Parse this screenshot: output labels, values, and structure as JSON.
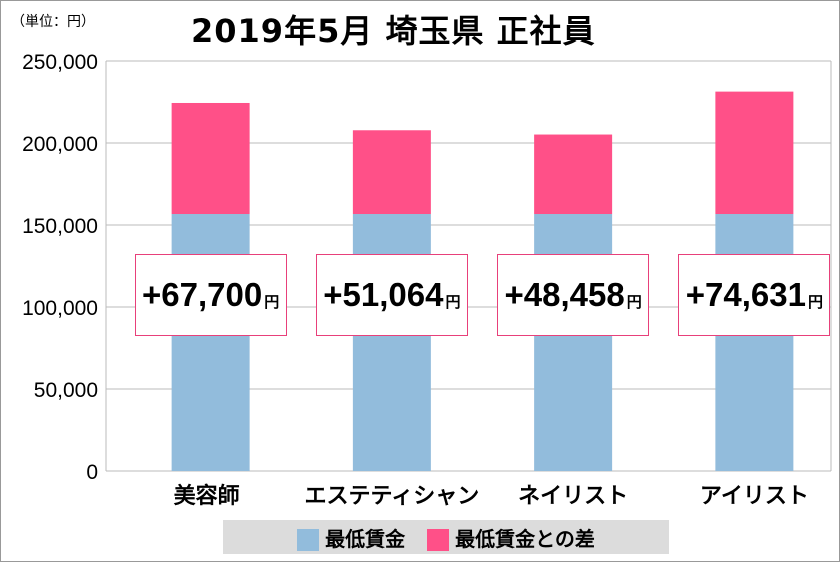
{
  "chart_data": {
    "type": "bar",
    "stacked": true,
    "title": "2019年5月 埼玉県 正社員",
    "unit_note": "（単位：円）",
    "categories": [
      "美容師",
      "エステティシャン",
      "ネイリスト",
      "アイリスト"
    ],
    "series": [
      {
        "name": "最低賃金",
        "color": "#92bcdc",
        "values": [
          156700,
          156700,
          156700,
          156700
        ]
      },
      {
        "name": "最低賃金との差",
        "color": "#ff5088",
        "values": [
          67700,
          51064,
          48458,
          74631
        ]
      }
    ],
    "data_labels": [
      "+67,700",
      "+51,064",
      "+48,458",
      "+74,631"
    ],
    "data_label_unit": "円",
    "ylim": [
      0,
      250000
    ],
    "yticks": [
      "0",
      "50,000",
      "100,000",
      "150,000",
      "200,000",
      "250,000"
    ],
    "grid": true,
    "legend_position": "bottom"
  }
}
